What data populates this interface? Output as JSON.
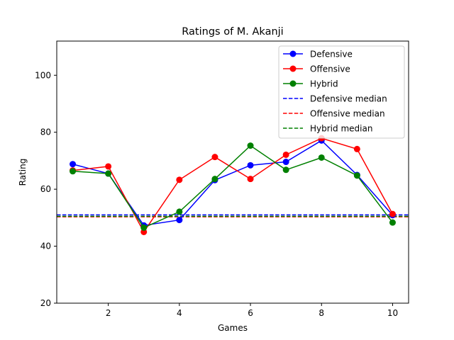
{
  "chart_data": {
    "type": "line",
    "title": "Ratings of M. Akanji",
    "xlabel": "Games",
    "ylabel": "Rating",
    "x": [
      1,
      2,
      3,
      4,
      5,
      6,
      7,
      8,
      9,
      10
    ],
    "xlim": [
      0.55,
      10.45
    ],
    "ylim": [
      20,
      112
    ],
    "x_ticks": [
      2,
      4,
      6,
      8,
      10
    ],
    "y_ticks": [
      20,
      40,
      60,
      80,
      100
    ],
    "grid": false,
    "legend_position": "top-right",
    "series": [
      {
        "name": "Defensive",
        "color": "#0000ff",
        "values": [
          68.8,
          65.5,
          47.3,
          49.2,
          63.2,
          68.4,
          69.6,
          77.1,
          65.0,
          50.9
        ]
      },
      {
        "name": "Offensive",
        "color": "#ff0000",
        "values": [
          66.6,
          68.0,
          45.0,
          63.3,
          71.3,
          63.6,
          72.1,
          77.9,
          74.1,
          51.3
        ]
      },
      {
        "name": "Hybrid",
        "color": "#008000",
        "values": [
          66.3,
          65.5,
          46.5,
          52.1,
          63.6,
          75.3,
          66.8,
          71.1,
          64.8,
          48.3
        ]
      }
    ],
    "medians": [
      {
        "name": "Defensive median",
        "color": "#0000ff",
        "value": 51.0
      },
      {
        "name": "Offensive median",
        "color": "#ff0000",
        "value": 50.3
      },
      {
        "name": "Hybrid median",
        "color": "#008000",
        "value": 50.5
      }
    ]
  }
}
